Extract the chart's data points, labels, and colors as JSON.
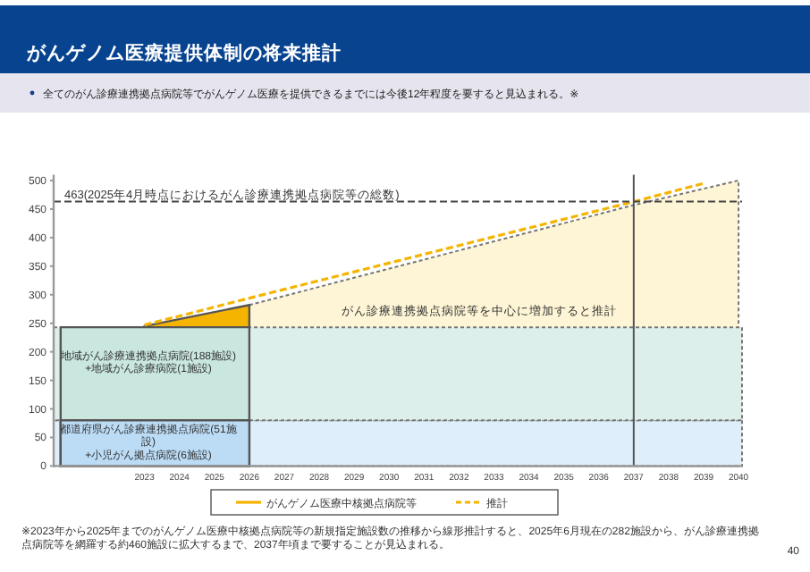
{
  "chart_data": {
    "type": "area",
    "title": "がんゲノム医療提供体制の将来推計",
    "subtitle": "全てのがん診療連携拠点病院等でがんゲノム医療を提供できるまでには今後12年程度を要すると見込まれる。※",
    "xlim": [
      2020.4,
      2040.1
    ],
    "xticks": [
      2023,
      2024,
      2025,
      2026,
      2027,
      2028,
      2029,
      2030,
      2031,
      2032,
      2033,
      2034,
      2035,
      2036,
      2037,
      2038,
      2039,
      2040
    ],
    "ylim": [
      0,
      510
    ],
    "yticks": [
      0,
      50,
      100,
      150,
      200,
      250,
      300,
      350,
      400,
      450,
      500
    ],
    "bands": [
      {
        "axis": "y",
        "from": 0,
        "to": 80,
        "color": "#deeffb"
      },
      {
        "axis": "y",
        "from": 80,
        "to": 243,
        "color": "#dcefea"
      }
    ],
    "series": [
      {
        "color": "#bcdcf6",
        "x": [
          2020.6,
          2026
        ],
        "values": [
          80,
          80
        ]
      },
      {
        "color": "#c9e6df",
        "x": [
          2020.6,
          2026
        ],
        "values": [
          243,
          243
        ]
      },
      {
        "color": "#fdf5d5",
        "line_style": "dashed",
        "x": [
          2026,
          2037,
          2040
        ],
        "values": [
          282,
          457,
          500
        ]
      },
      {
        "name": "がんゲノム医療中核拠点病院等",
        "color": "#f5b400",
        "x": [
          2023,
          2026
        ],
        "values": [
          245,
          282
        ]
      },
      {
        "type": "line",
        "name": "推計",
        "color": "#f5b400",
        "line_style": "dashed",
        "x": [
          2023,
          2026,
          2037,
          2039
        ],
        "values": [
          247,
          294,
          463,
          495
        ]
      }
    ],
    "ref_lines": [
      {
        "axis": "y",
        "value": 463,
        "label": "463(2025年4月時点におけるがん診療連携拠点病院等の総数)",
        "color": "#444444",
        "line_style": "dashed"
      },
      {
        "axis": "x",
        "value": 2037,
        "color": "#555555",
        "line_style": "solid"
      }
    ],
    "annotations": [
      "がん診療連携拠点病院等を中心に増加すると推計",
      "地域がん診療連携拠点病院(188施設)\n+地域がん診療病院(1施設)",
      "都道府県がん診療連携拠点病院(51施設)\n+小児がん拠点病院(6施設)",
      "※2023年から2025年までのがんゲノム医療中核拠点病院等の新規指定施設数の推移から線形推計すると、2025年6月現在の282施設から、がん診療連携拠点病院等を網羅する約460施設に拡大するまで、2037年頃まで要することが見込まれる。",
      "40"
    ],
    "legend": "bottom"
  }
}
